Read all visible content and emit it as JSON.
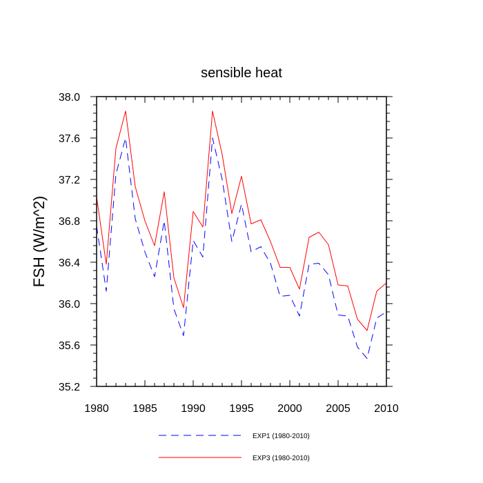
{
  "chart_data": {
    "type": "line",
    "title": "sensible heat",
    "xlabel": "",
    "ylabel": "FSH  (W/m^2)",
    "xlim": [
      1980,
      2010
    ],
    "ylim": [
      35.2,
      38.0
    ],
    "xticks": [
      "1980",
      "1985",
      "1990",
      "1995",
      "2000",
      "2005",
      "2010"
    ],
    "yticks": [
      "35.2",
      "35.6",
      "36.0",
      "36.4",
      "36.8",
      "37.2",
      "37.6",
      "38.0"
    ],
    "x": [
      1980,
      1981,
      1982,
      1983,
      1984,
      1985,
      1986,
      1987,
      1988,
      1989,
      1990,
      1991,
      1992,
      1993,
      1994,
      1995,
      1996,
      1997,
      1998,
      1999,
      2000,
      2001,
      2002,
      2003,
      2004,
      2005,
      2006,
      2007,
      2008,
      2009,
      2010
    ],
    "series": [
      {
        "name": "EXP1 (1980-2010)",
        "color": "#0000ff",
        "style": "dashed",
        "values": [
          36.75,
          36.12,
          37.25,
          37.6,
          36.82,
          36.5,
          36.26,
          36.8,
          35.95,
          35.69,
          36.61,
          36.45,
          37.6,
          37.2,
          36.6,
          36.96,
          36.5,
          36.55,
          36.39,
          36.07,
          36.08,
          35.88,
          36.38,
          36.39,
          36.28,
          35.89,
          35.88,
          35.58,
          35.47,
          35.86,
          35.92
        ]
      },
      {
        "name": "EXP3 (1980-2010)",
        "color": "#ff0000",
        "style": "solid",
        "values": [
          37.03,
          36.38,
          37.5,
          37.86,
          37.13,
          36.8,
          36.56,
          37.08,
          36.25,
          35.96,
          36.89,
          36.74,
          37.86,
          37.44,
          36.87,
          37.23,
          36.77,
          36.81,
          36.6,
          36.35,
          36.35,
          36.14,
          36.64,
          36.69,
          36.57,
          36.18,
          36.17,
          35.85,
          35.74,
          36.12,
          36.2
        ]
      }
    ],
    "grid": false,
    "legend": "bottom"
  }
}
